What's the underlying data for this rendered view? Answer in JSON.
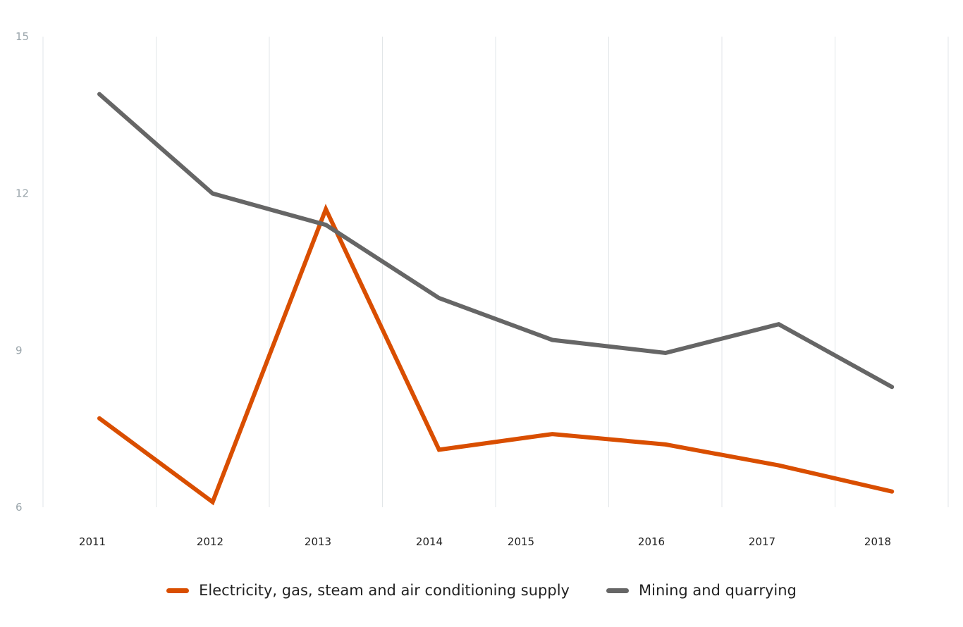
{
  "chart_data": {
    "type": "line",
    "title": "",
    "xlabel": "",
    "ylabel": "",
    "categories": [
      "2011",
      "2012",
      "2013",
      "2014",
      "2015",
      "2016",
      "2017",
      "2018"
    ],
    "ylim": [
      6,
      15
    ],
    "yticks": [
      6,
      9,
      12,
      15
    ],
    "grid": "vertical",
    "legend_position": "bottom-center",
    "series": [
      {
        "name": "Electricity, gas, steam and air conditioning supply",
        "color": "#d94e00",
        "values": [
          7.7,
          6.1,
          11.7,
          7.1,
          7.4,
          7.2,
          6.8,
          6.3
        ]
      },
      {
        "name": "Mining and quarrying",
        "color": "#666666",
        "values": [
          13.9,
          12.0,
          11.4,
          10.0,
          9.2,
          8.95,
          9.5,
          8.3
        ]
      }
    ]
  }
}
